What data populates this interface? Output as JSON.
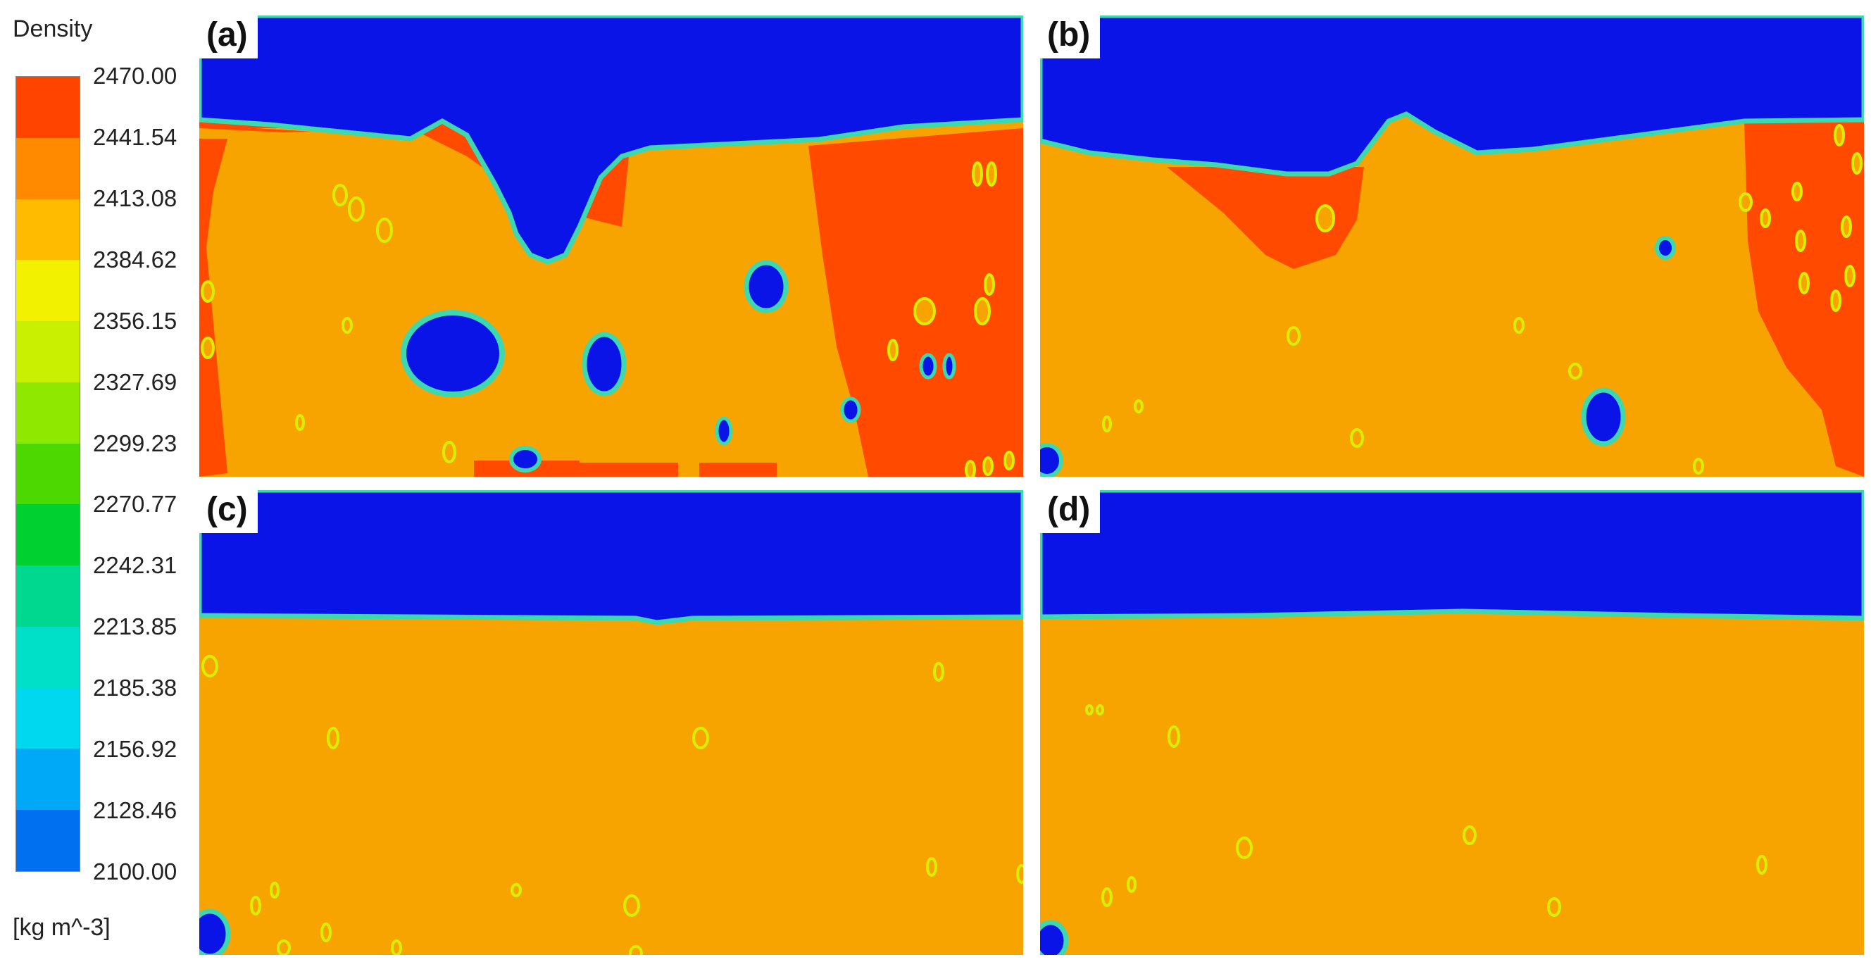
{
  "legend": {
    "title": "Density",
    "unit": "[kg m^-3]",
    "ticks": [
      "2470.00",
      "2441.54",
      "2413.08",
      "2384.62",
      "2356.15",
      "2327.69",
      "2299.23",
      "2270.77",
      "2242.31",
      "2213.85",
      "2185.38",
      "2156.92",
      "2128.46",
      "2100.00"
    ],
    "colors": [
      "#ff4400",
      "#ff8a00",
      "#ffbb00",
      "#f2f200",
      "#c8f000",
      "#8ee800",
      "#4cd800",
      "#00d030",
      "#00d890",
      "#00e0c8",
      "#00d8f0",
      "#00a8f8",
      "#0070f0",
      "#0030e8"
    ]
  },
  "palette": {
    "void": "#0a14e6",
    "dense": "#ff4a00",
    "matrix": "#f8a400",
    "interface": "#3ed8b0",
    "bubble_ring": "#d8f000"
  },
  "panels": [
    {
      "label": "(a)"
    },
    {
      "label": "(b)"
    },
    {
      "label": "(c)"
    },
    {
      "label": "(d)"
    }
  ]
}
